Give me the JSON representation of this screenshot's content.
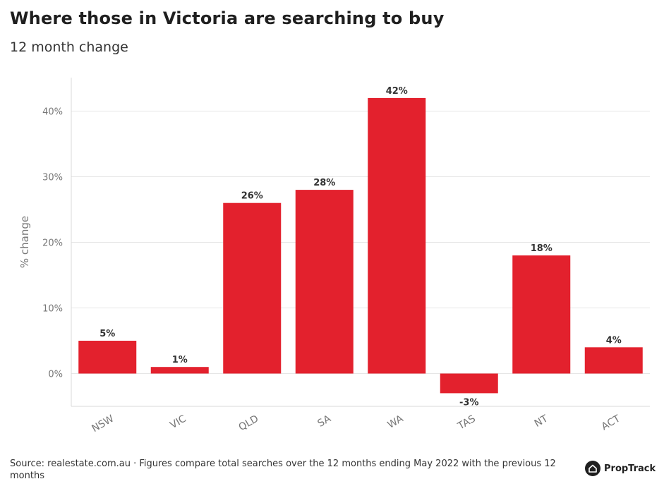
{
  "header": {
    "title": "Where those in Victoria are searching to buy",
    "subtitle": "12 month change"
  },
  "chart_data": {
    "type": "bar",
    "categories": [
      "NSW",
      "VIC",
      "QLD",
      "SA",
      "WA",
      "TAS",
      "NT",
      "ACT"
    ],
    "values": [
      5,
      1,
      26,
      28,
      42,
      -3,
      18,
      4
    ],
    "value_labels": [
      "5%",
      "1%",
      "26%",
      "28%",
      "42%",
      "-3%",
      "18%",
      "4%"
    ],
    "ylabel": "% change",
    "xlabel": "",
    "ylim": [
      -5,
      45
    ],
    "yticks": [
      0,
      10,
      20,
      30,
      40
    ],
    "ytick_labels": [
      "0%",
      "10%",
      "20%",
      "30%",
      "40%"
    ],
    "grid": true,
    "bar_color": "#e3212d"
  },
  "footer": {
    "source": "Source: realestate.com.au · Figures compare total searches over the 12 months ending May 2022 with the previous 12 months",
    "brand": "PropTrack"
  }
}
